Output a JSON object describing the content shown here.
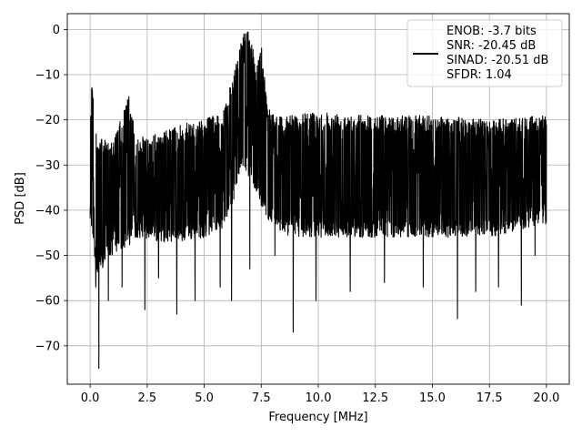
{
  "chart_data": {
    "type": "line",
    "title": "",
    "xlabel": "Frequency [MHz]",
    "ylabel": "PSD [dB]",
    "xlim": [
      -1.0,
      21.0
    ],
    "ylim": [
      -78.5,
      3.5
    ],
    "xticks": [
      0.0,
      2.5,
      5.0,
      7.5,
      10.0,
      12.5,
      15.0,
      17.5,
      20.0
    ],
    "xtick_labels": [
      "0.0",
      "2.5",
      "5.0",
      "7.5",
      "10.0",
      "12.5",
      "15.0",
      "17.5",
      "20.0"
    ],
    "yticks": [
      0,
      -10,
      -20,
      -30,
      -40,
      -50,
      -60,
      -70
    ],
    "ytick_labels": [
      "0",
      "−10",
      "−20",
      "−30",
      "−40",
      "−50",
      "−60",
      "−70"
    ],
    "grid": true,
    "legend_position": "top-right",
    "series": [
      {
        "name": "ENOB: -3.7 bits\nSNR: -20.45 dB\nSINAD: -20.51 dB\nSFDR: 1.04",
        "legend_lines": [
          "ENOB: -3.7 bits",
          "SNR: -20.45 dB",
          "SINAD: -20.51 dB",
          "SFDR: 1.04"
        ],
        "color": "#000000",
        "envelope": {
          "x": [
            0.0,
            0.05,
            0.3,
            1.0,
            1.7,
            2.0,
            3.0,
            4.0,
            5.0,
            5.8,
            6.3,
            6.6,
            6.8,
            7.0,
            7.3,
            7.5,
            7.8,
            8.2,
            9.0,
            10.0,
            12.5,
            15.0,
            17.5,
            20.0
          ],
          "upper": [
            -24,
            -9,
            -24,
            -25,
            -14.5,
            -24,
            -23,
            -21,
            -20,
            -18,
            -10,
            -3,
            0,
            -1,
            -8,
            -3,
            -17,
            -19,
            -19,
            -18,
            -19,
            -19,
            -20,
            -19
          ],
          "lower": [
            -43,
            -44,
            -55,
            -50,
            -48,
            -46,
            -47,
            -47,
            -46,
            -44,
            -38,
            -30,
            -31,
            -33,
            -36,
            -40,
            -42,
            -45,
            -46,
            -46,
            -46,
            -46,
            -46,
            -43
          ]
        },
        "spikes": [
          {
            "x": 0.38,
            "y": -75
          },
          {
            "x": 0.25,
            "y": -57
          },
          {
            "x": 0.8,
            "y": -60
          },
          {
            "x": 1.4,
            "y": -57
          },
          {
            "x": 2.4,
            "y": -62
          },
          {
            "x": 3.0,
            "y": -55
          },
          {
            "x": 3.8,
            "y": -63
          },
          {
            "x": 4.6,
            "y": -60
          },
          {
            "x": 5.7,
            "y": -57
          },
          {
            "x": 6.2,
            "y": -60
          },
          {
            "x": 7.0,
            "y": -53
          },
          {
            "x": 8.1,
            "y": -50
          },
          {
            "x": 8.9,
            "y": -67
          },
          {
            "x": 9.9,
            "y": -60
          },
          {
            "x": 11.4,
            "y": -58
          },
          {
            "x": 12.9,
            "y": -56
          },
          {
            "x": 14.6,
            "y": -57
          },
          {
            "x": 16.1,
            "y": -64
          },
          {
            "x": 16.9,
            "y": -58
          },
          {
            "x": 17.9,
            "y": -57
          },
          {
            "x": 18.9,
            "y": -61
          },
          {
            "x": 19.5,
            "y": -50
          }
        ]
      }
    ]
  }
}
